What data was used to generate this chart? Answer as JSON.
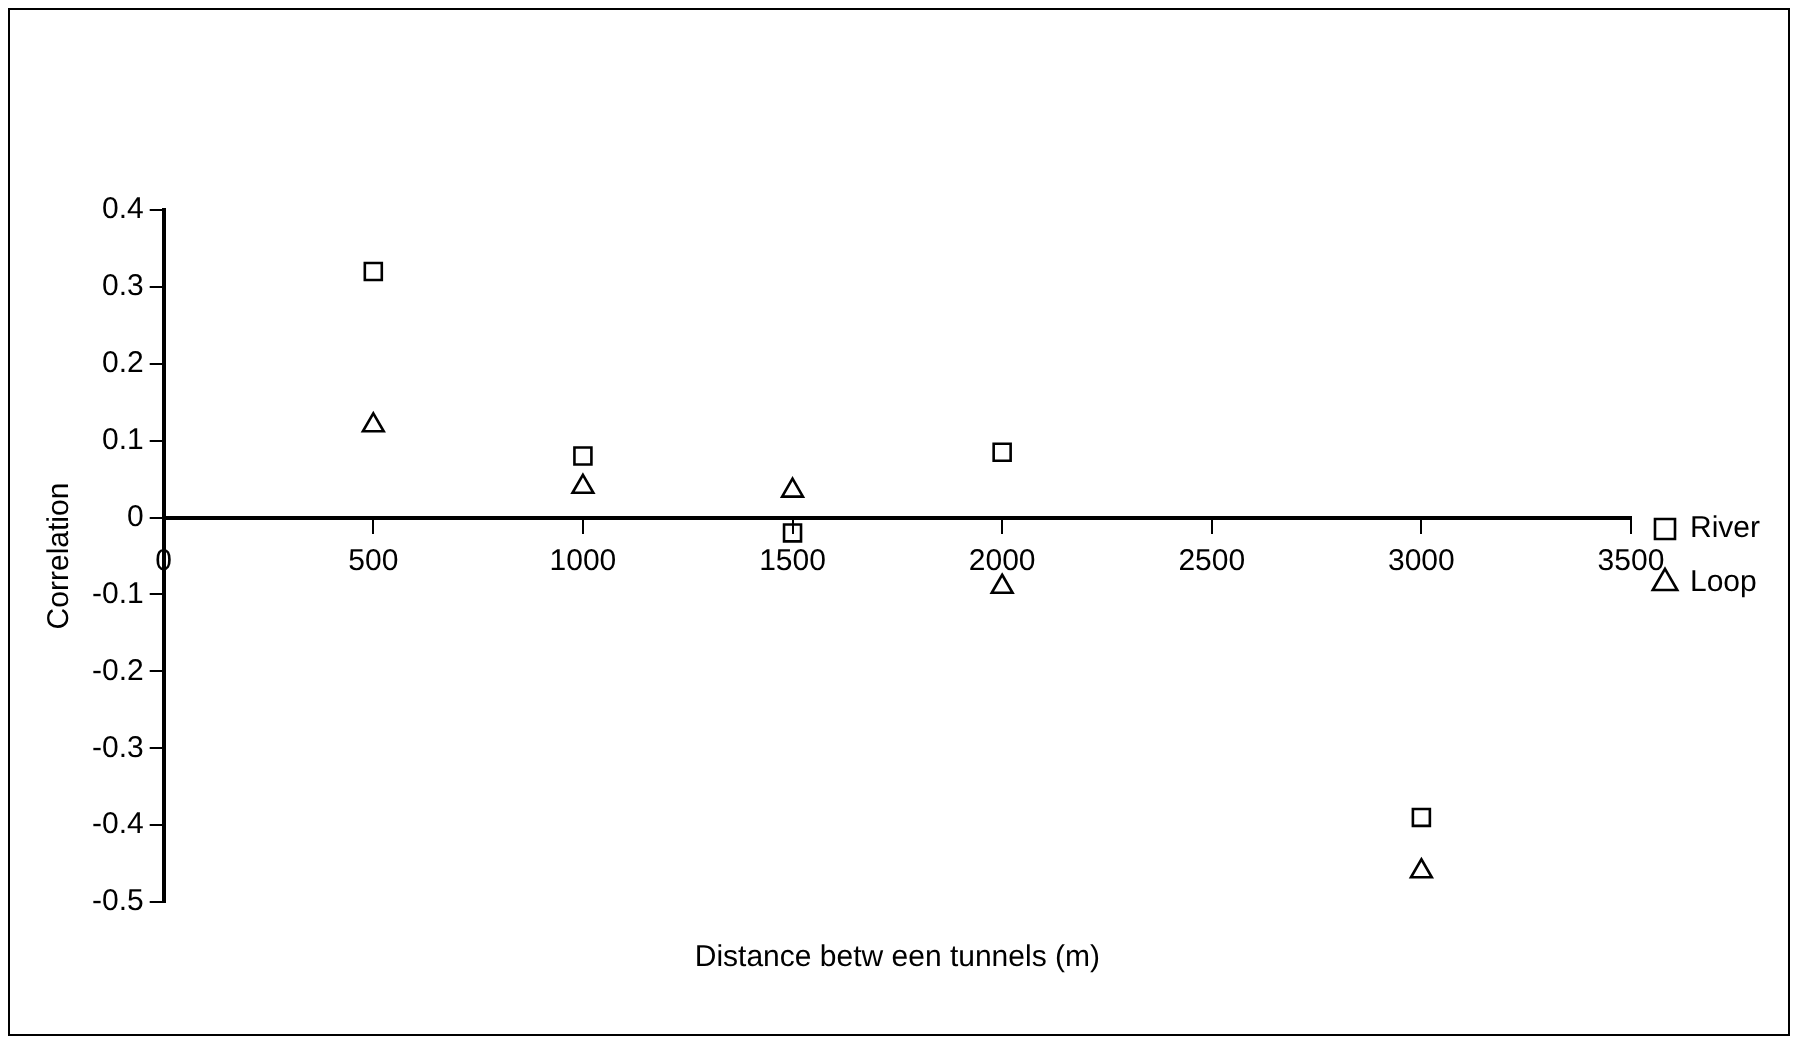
{
  "chart_data": {
    "type": "scatter",
    "xlabel": "Distance betw een tunnels (m)",
    "ylabel": "Correlation",
    "x": [
      500,
      1000,
      1500,
      2000,
      3000
    ],
    "series": [
      {
        "name": "River",
        "color": "#000000",
        "marker": "square",
        "values": [
          0.32,
          0.08,
          -0.02,
          0.085,
          -0.39
        ]
      },
      {
        "name": "Loop",
        "color": "#000000",
        "marker": "triangle",
        "values": [
          0.12,
          0.04,
          0.035,
          -0.09,
          -0.46
        ]
      }
    ],
    "xlim": [
      0,
      3500
    ],
    "xticks": [
      0,
      500,
      1000,
      1500,
      2000,
      2500,
      3000,
      3500
    ],
    "ylim": [
      -0.5,
      0.4
    ],
    "yticks": [
      -0.5,
      -0.4,
      -0.3,
      -0.2,
      -0.1,
      0,
      0.1,
      0.2,
      0.3,
      0.4
    ],
    "grid": false,
    "legend": "right"
  }
}
